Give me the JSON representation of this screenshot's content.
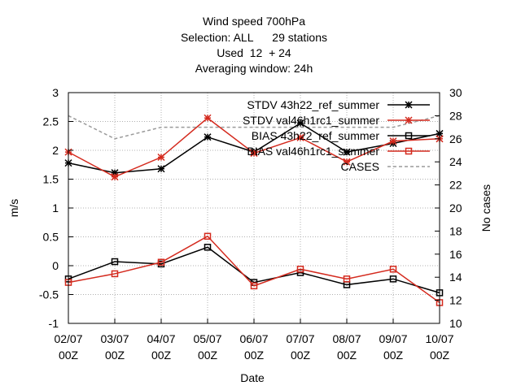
{
  "chart_data": {
    "type": "line",
    "title_lines": [
      "Wind speed 700hPa",
      "Selection: ALL      29 stations",
      "Used  12  + 24",
      "Averaging window: 24h"
    ],
    "xlabel": "Date",
    "ylabel": "m/s",
    "y2label": "No cases",
    "categories": [
      "02/07\n00Z",
      "03/07\n00Z",
      "04/07\n00Z",
      "05/07\n00Z",
      "06/07\n00Z",
      "07/07\n00Z",
      "08/07\n00Z",
      "09/07\n00Z",
      "10/07\n00Z"
    ],
    "ylim": [
      -1,
      3
    ],
    "yticks": [
      -1,
      -0.5,
      0,
      0.5,
      1,
      1.5,
      2,
      2.5,
      3
    ],
    "y2lim": [
      10,
      30
    ],
    "y2ticks": [
      10,
      12,
      14,
      16,
      18,
      20,
      22,
      24,
      26,
      28,
      30
    ],
    "grid": true,
    "legend_position": "top-right",
    "series": [
      {
        "name": "STDV 43h22_ref_summer",
        "axis": "y1",
        "color": "#000000",
        "marker": "star",
        "dash": "",
        "values": [
          1.78,
          1.61,
          1.68,
          2.23,
          1.97,
          2.47,
          1.97,
          2.12,
          2.29
        ]
      },
      {
        "name": "STDV val46h1rc1_summer",
        "axis": "y1",
        "color": "#d42a1e",
        "marker": "star",
        "dash": "",
        "values": [
          1.97,
          1.54,
          1.88,
          2.56,
          1.95,
          2.22,
          1.8,
          2.16,
          2.2
        ]
      },
      {
        "name": "BIAS 43h22_ref_summer",
        "axis": "y1",
        "color": "#000000",
        "marker": "square",
        "dash": "",
        "values": [
          -0.23,
          0.07,
          0.03,
          0.32,
          -0.29,
          -0.12,
          -0.33,
          -0.23,
          -0.47
        ]
      },
      {
        "name": "BIAS val46h1rc1_summer",
        "axis": "y1",
        "color": "#d42a1e",
        "marker": "square",
        "dash": "",
        "values": [
          -0.29,
          -0.14,
          0.06,
          0.51,
          -0.35,
          -0.06,
          -0.23,
          -0.06,
          -0.64
        ]
      },
      {
        "name": "CASES",
        "axis": "y2",
        "color": "#9a9a9a",
        "marker": "none",
        "dash": "4,3",
        "values": [
          28,
          26,
          27,
          27,
          27,
          27,
          27,
          27,
          28
        ]
      }
    ]
  }
}
